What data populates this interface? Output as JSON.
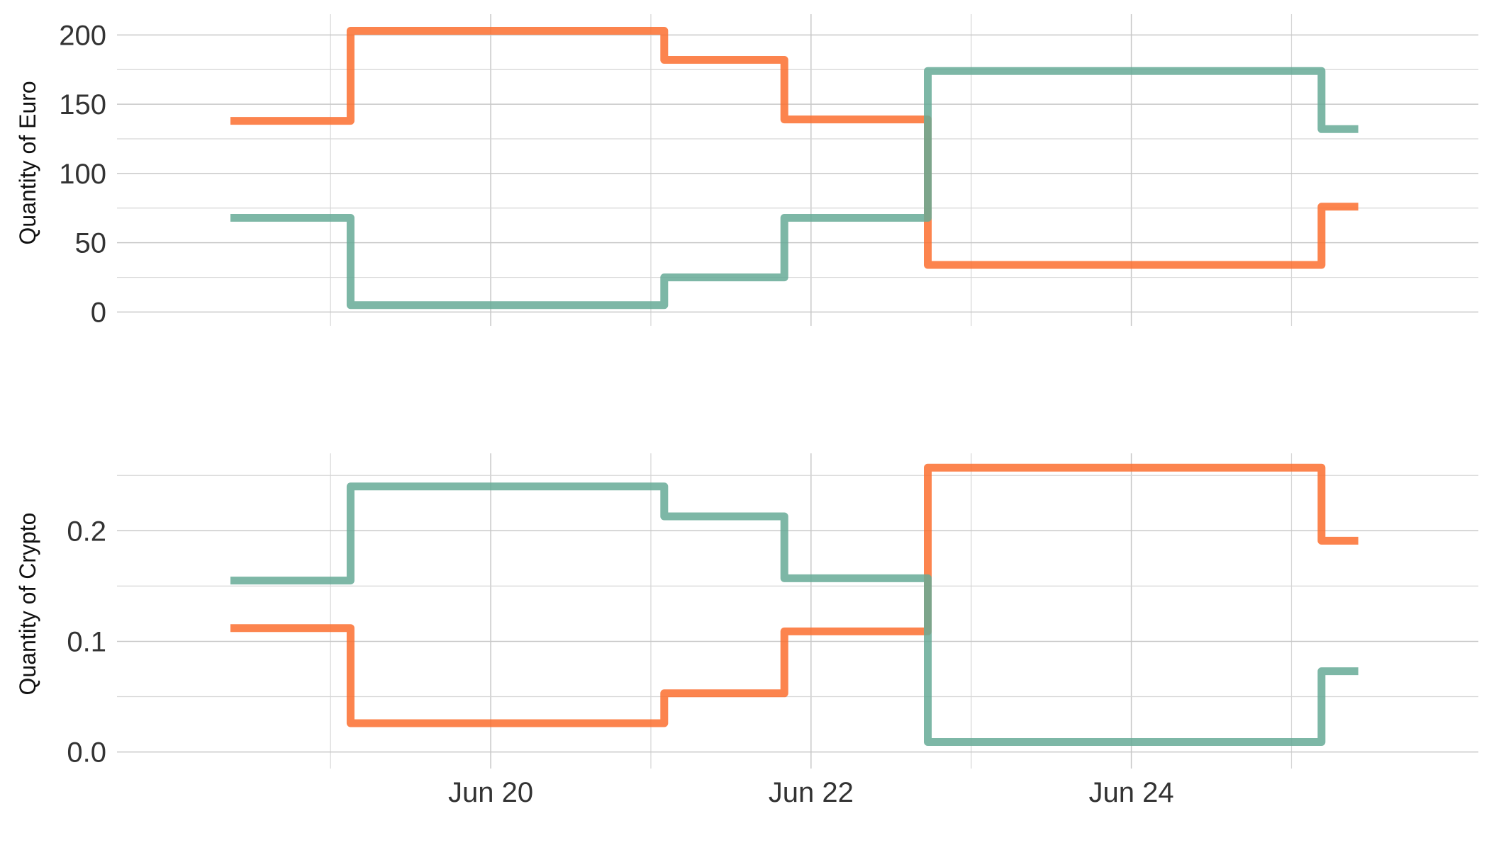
{
  "chart_data": [
    {
      "type": "line",
      "step": "post",
      "ylabel": "Quantity of Euro",
      "ylim": [
        -10,
        215
      ],
      "yticks": [
        0,
        50,
        100,
        150,
        200
      ],
      "ytick_labels": [
        "0",
        "50",
        "100",
        "150",
        "200"
      ],
      "x_breakpoints": [
        "2024-06-18T09:00",
        "2024-06-19T03:00",
        "2024-06-21T02:00",
        "2024-06-21T20:00",
        "2024-06-22T17:30",
        "2024-06-25T04:30",
        "2024-06-25T10:00"
      ],
      "series": [
        {
          "color": "#fc6e2f",
          "values": [
            138,
            203,
            182,
            139,
            34,
            76,
            76
          ]
        },
        {
          "color": "#66aa96",
          "values": [
            68,
            5,
            25,
            68,
            174,
            132,
            132
          ]
        }
      ]
    },
    {
      "type": "line",
      "step": "post",
      "ylabel": "Quantity of Crypto",
      "ylim": [
        -0.015,
        0.27
      ],
      "yticks": [
        0.0,
        0.1,
        0.2
      ],
      "ytick_labels": [
        "0.0",
        "0.1",
        "0.2"
      ],
      "x_breakpoints": [
        "2024-06-18T09:00",
        "2024-06-19T03:00",
        "2024-06-21T02:00",
        "2024-06-21T20:00",
        "2024-06-22T17:30",
        "2024-06-25T04:30",
        "2024-06-25T10:00"
      ],
      "series": [
        {
          "color": "#fc6e2f",
          "values": [
            0.112,
            0.026,
            0.053,
            0.109,
            0.257,
            0.191,
            0.191
          ]
        },
        {
          "color": "#66aa96",
          "values": [
            0.155,
            0.24,
            0.213,
            0.157,
            0.009,
            0.073,
            0.073
          ]
        }
      ]
    }
  ],
  "x_axis": {
    "type": "date",
    "range": [
      "2024-06-17T16:00",
      "2024-06-26T04:00"
    ],
    "ticks": [
      "2024-06-20",
      "2024-06-22",
      "2024-06-24"
    ],
    "tick_labels": [
      "Jun 20",
      "Jun 22",
      "Jun 24"
    ],
    "minor_ticks": [
      "2024-06-19",
      "2024-06-21",
      "2024-06-23",
      "2024-06-25"
    ]
  },
  "grid": true,
  "legend": "none"
}
